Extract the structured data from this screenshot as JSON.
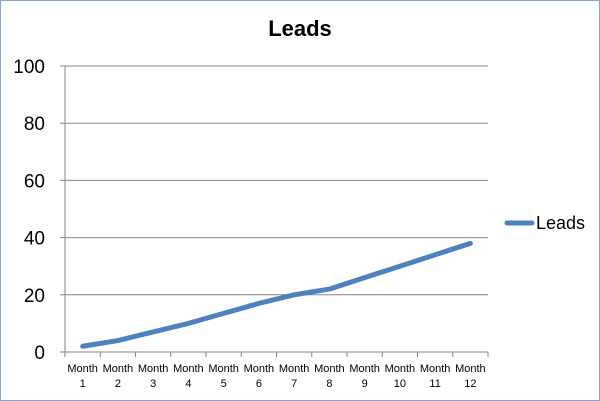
{
  "chart_data": {
    "type": "line",
    "title": "Leads",
    "categories": [
      "Month 1",
      "Month 2",
      "Month 3",
      "Month 4",
      "Month 5",
      "Month 6",
      "Month 7",
      "Month 8",
      "Month 9",
      "Month 10",
      "Month 11",
      "Month 12"
    ],
    "category_lines": [
      [
        "Month",
        "1"
      ],
      [
        "Month",
        "2"
      ],
      [
        "Month",
        "3"
      ],
      [
        "Month",
        "4"
      ],
      [
        "Month",
        "5"
      ],
      [
        "Month",
        "6"
      ],
      [
        "Month",
        "7"
      ],
      [
        "Month",
        "8"
      ],
      [
        "Month",
        "9"
      ],
      [
        "Month",
        "10"
      ],
      [
        "Month",
        "11"
      ],
      [
        "Month",
        "12"
      ]
    ],
    "series": [
      {
        "name": "Leads",
        "color": "#4f81bd",
        "values": [
          2,
          4,
          7,
          10,
          13.5,
          17,
          20,
          22,
          26,
          30,
          34,
          38
        ]
      }
    ],
    "ylim": [
      0,
      100
    ],
    "yticks": [
      0,
      20,
      40,
      60,
      80,
      100
    ],
    "grid": "horizontal",
    "legend_position": "right"
  }
}
